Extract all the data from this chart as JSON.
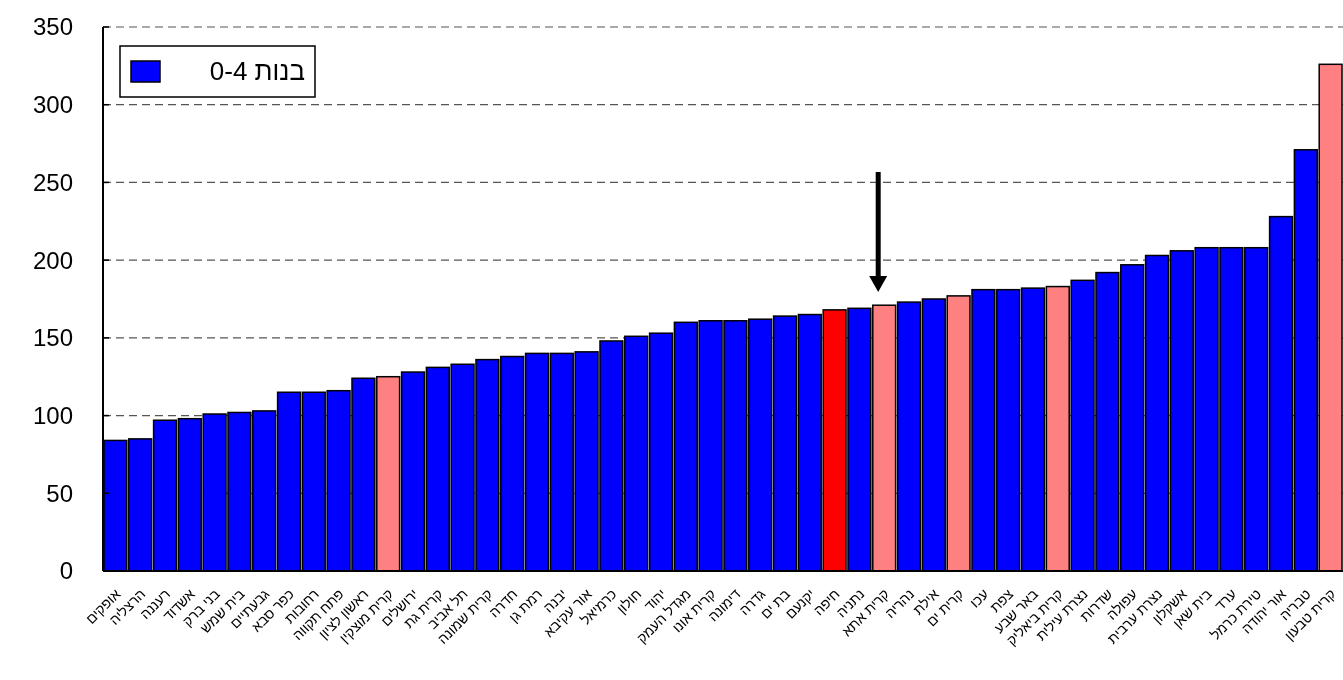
{
  "chart_data": {
    "type": "bar",
    "categories": [
      "אופקים",
      "הרצליה",
      "רעננה",
      "אשדוד",
      "בני ברק",
      "בית שמש",
      "גבעתיים",
      "כפר סבא",
      "רחובות",
      "פתח תקווה",
      "ראשון לציון",
      "קרית מוצקין",
      "ירושלים",
      "קרית גת",
      "תל אביב",
      "קרית שמונה",
      "חדרה",
      "רמת גן",
      "יבנה",
      "אור עקיבא",
      "כרמיאל",
      "חולון",
      "יהוד",
      "מגדל העמק",
      "קרית אונו",
      "דימונה",
      "גדרה",
      "בת ים",
      "יקנעם",
      "חיפה",
      "נתניה",
      "קרית אתא",
      "נהריה",
      "אילת",
      "קרית ים",
      "עכו",
      "צפת",
      "באר שבע",
      "קרית ביאליק",
      "נצרת עילית",
      "שדרות",
      "עפולה",
      "נצרת ערבית",
      "אשקלון",
      "בית שאן",
      "ערד",
      "טירת כרמל",
      "אור יהודה",
      "טבריה",
      "קרית טבעון"
    ],
    "series": [
      {
        "name": "בנות 0-4",
        "color": "#0000ff",
        "values": [
          84,
          85,
          97,
          98,
          101,
          102,
          103,
          115,
          115,
          116,
          124,
          125,
          128,
          131,
          133,
          136,
          138,
          140,
          140,
          141,
          148,
          151,
          153,
          160,
          161,
          161,
          162,
          164,
          165,
          168,
          169,
          171,
          173,
          175,
          177,
          181,
          181,
          182,
          183,
          187,
          192,
          197,
          203,
          206,
          208,
          208,
          208,
          228,
          271,
          326
        ],
        "colors": [
          "#0000ff",
          "#0000ff",
          "#0000ff",
          "#0000ff",
          "#0000ff",
          "#0000ff",
          "#0000ff",
          "#0000ff",
          "#0000ff",
          "#0000ff",
          "#0000ff",
          "#ff8080",
          "#0000ff",
          "#0000ff",
          "#0000ff",
          "#0000ff",
          "#0000ff",
          "#0000ff",
          "#0000ff",
          "#0000ff",
          "#0000ff",
          "#0000ff",
          "#0000ff",
          "#0000ff",
          "#0000ff",
          "#0000ff",
          "#0000ff",
          "#0000ff",
          "#0000ff",
          "#ff0000",
          "#0000ff",
          "#ff8080",
          "#0000ff",
          "#0000ff",
          "#ff8080",
          "#0000ff",
          "#0000ff",
          "#0000ff",
          "#ff8080",
          "#0000ff",
          "#0000ff",
          "#0000ff",
          "#0000ff",
          "#0000ff",
          "#0000ff",
          "#0000ff",
          "#0000ff",
          "#0000ff",
          "#0000ff",
          "#ff8080"
        ]
      }
    ],
    "ylim": [
      0,
      350
    ],
    "yticks": [
      0,
      50,
      100,
      150,
      200,
      250,
      300,
      350
    ],
    "grid": "y",
    "legend": "top left"
  }
}
